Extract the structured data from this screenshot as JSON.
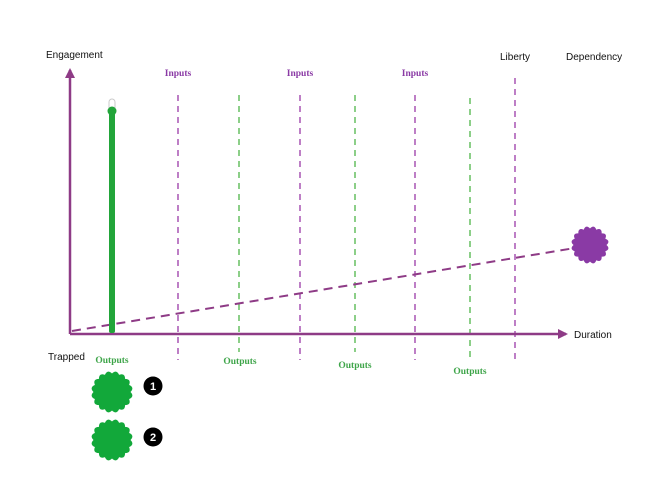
{
  "axes": {
    "y_label": "Engagement",
    "x_label": "Duration",
    "origin_label": "Trapped",
    "top_right_label": "Liberty",
    "far_right_label": "Dependency"
  },
  "inputs": [
    "Inputs",
    "Inputs",
    "Inputs"
  ],
  "outputs": [
    "Outputs",
    "Outputs",
    "Outputs",
    "Outputs"
  ],
  "legend": [
    {
      "number": "1",
      "icon": "green-gear-icon"
    },
    {
      "number": "2",
      "icon": "green-gear-icon"
    }
  ],
  "colors": {
    "axis": "#8e3b86",
    "input_line": "#9a3aa8",
    "output_line": "#4fb548",
    "progress_bar": "#22a53a",
    "gear_green": "#12a83a",
    "gear_purple": "#8a3aa5",
    "input_text": "#8a3aa5",
    "output_text": "#3fa54a"
  }
}
